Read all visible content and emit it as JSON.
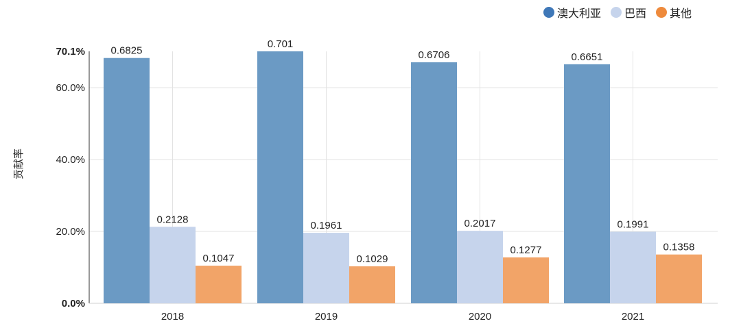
{
  "chart_data": {
    "type": "bar",
    "ylabel": "贡献率",
    "categories": [
      "2018",
      "2019",
      "2020",
      "2021"
    ],
    "series": [
      {
        "name": "澳大利亚",
        "color": "#6b9ac4",
        "values": [
          0.6825,
          0.701,
          0.6706,
          0.6651
        ],
        "labels": [
          "0.6825",
          "0.701",
          "0.6706",
          "0.6651"
        ]
      },
      {
        "name": "巴西",
        "color": "#c6d4ec",
        "values": [
          0.2128,
          0.1961,
          0.2017,
          0.1991
        ],
        "labels": [
          "0.2128",
          "0.1961",
          "0.2017",
          "0.1991"
        ]
      },
      {
        "name": "其他",
        "color": "#f2a468",
        "values": [
          0.1047,
          0.1029,
          0.1277,
          0.1358
        ],
        "labels": [
          "0.1047",
          "0.1029",
          "0.1277",
          "0.1358"
        ]
      }
    ],
    "legend_markers": [
      "#3f78b8",
      "#c6d4ec",
      "#ee8a3c"
    ],
    "ylim": [
      0,
      0.701
    ],
    "yticks": [
      {
        "value": 0,
        "label": "0.0%",
        "bold": true
      },
      {
        "value": 0.2,
        "label": "20.0%",
        "bold": false
      },
      {
        "value": 0.4,
        "label": "40.0%",
        "bold": false
      },
      {
        "value": 0.6,
        "label": "60.0%",
        "bold": false
      },
      {
        "value": 0.701,
        "label": "70.1%",
        "bold": true
      }
    ],
    "grid": true,
    "legend_position": "top-right"
  }
}
